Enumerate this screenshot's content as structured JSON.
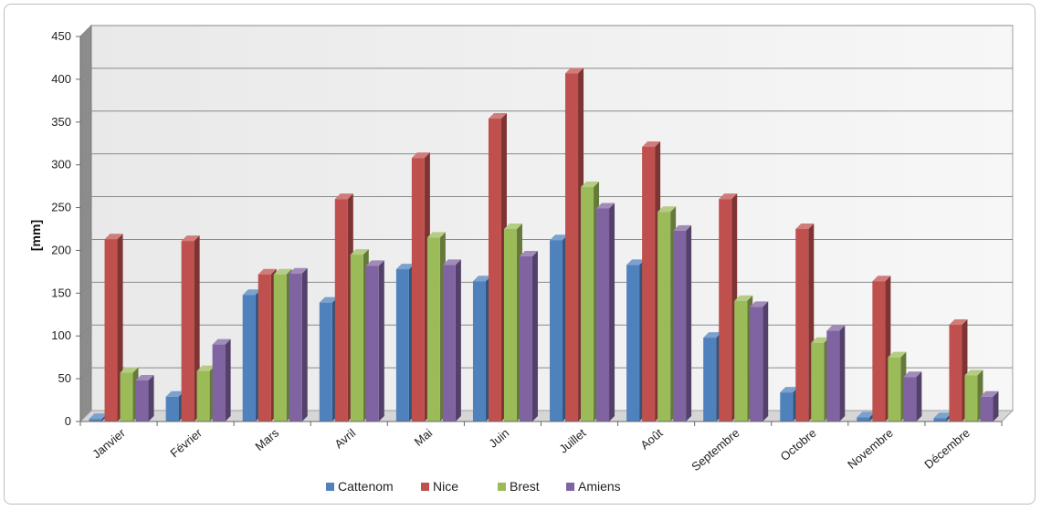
{
  "chart_data": {
    "type": "bar",
    "title": "",
    "xlabel": "",
    "ylabel": "[mm]",
    "ylim": [
      0,
      450
    ],
    "yticks": [
      0,
      50,
      100,
      150,
      200,
      250,
      300,
      350,
      400,
      450
    ],
    "grid": true,
    "legend_position": "bottom",
    "categories": [
      "Janvier",
      "Février",
      "Mars",
      "Avril",
      "Mai",
      "Juin",
      "Juillet",
      "Août",
      "Septembre",
      "Octobre",
      "Novembre",
      "Décembre"
    ],
    "series": [
      {
        "name": "Cattenom",
        "color": "#4f81bd",
        "values": [
          3,
          29,
          148,
          139,
          178,
          164,
          212,
          183,
          98,
          34,
          5,
          4
        ]
      },
      {
        "name": "Nice",
        "color": "#c0504d",
        "values": [
          213,
          211,
          172,
          260,
          308,
          354,
          407,
          321,
          260,
          225,
          164,
          113
        ]
      },
      {
        "name": "Brest",
        "color": "#9bbb59",
        "values": [
          57,
          59,
          172,
          195,
          215,
          225,
          274,
          245,
          141,
          92,
          75,
          54
        ]
      },
      {
        "name": "Amiens",
        "color": "#8064a2",
        "values": [
          48,
          90,
          173,
          182,
          183,
          193,
          249,
          223,
          134,
          106,
          52,
          29
        ]
      }
    ]
  }
}
